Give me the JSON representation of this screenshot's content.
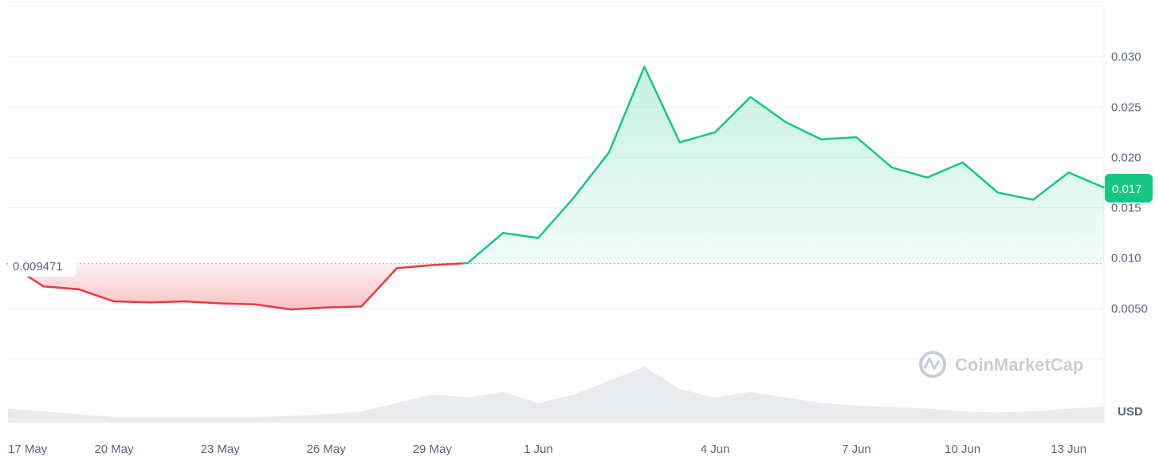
{
  "chart_data": {
    "type": "area",
    "x": [
      "17 May",
      "18 May",
      "19 May",
      "20 May",
      "21 May",
      "22 May",
      "23 May",
      "24 May",
      "25 May",
      "26 May",
      "27 May",
      "28 May",
      "29 May",
      "30 May",
      "31 May",
      "1 Jun",
      "2 Jun",
      "2 Jun 12h",
      "3 Jun",
      "3 Jun 12h",
      "4 Jun",
      "4 Jun 12h",
      "5 Jun",
      "6 Jun",
      "7 Jun",
      "8 Jun",
      "9 Jun",
      "10 Jun",
      "11 Jun",
      "12 Jun",
      "13 Jun",
      "14 Jun"
    ],
    "series": [
      {
        "values": [
          0.009471,
          0.0072,
          0.0069,
          0.0057,
          0.0056,
          0.0057,
          0.0055,
          0.0054,
          0.0049,
          0.0051,
          0.0052,
          0.009,
          0.0093,
          0.0095,
          0.0125,
          0.012,
          0.016,
          0.0205,
          0.029,
          0.0215,
          0.0225,
          0.026,
          0.0235,
          0.0218,
          0.022,
          0.019,
          0.018,
          0.0195,
          0.0165,
          0.0158,
          0.0185,
          0.017
        ]
      }
    ],
    "volume": [
      0.25,
      0.2,
      0.15,
      0.1,
      0.1,
      0.1,
      0.1,
      0.1,
      0.12,
      0.15,
      0.2,
      0.35,
      0.5,
      0.45,
      0.55,
      0.35,
      0.5,
      0.75,
      1.0,
      0.6,
      0.45,
      0.55,
      0.45,
      0.35,
      0.3,
      0.28,
      0.25,
      0.2,
      0.18,
      0.2,
      0.25,
      0.28
    ],
    "baseline": 0.009471,
    "baseline_label": "0.009471",
    "current_label": "0.017",
    "y_ticks": [
      0.03,
      0.025,
      0.02,
      0.015,
      0.01,
      0.005
    ],
    "y_tick_labels": [
      "0.030",
      "0.025",
      "0.020",
      "0.015",
      "0.010",
      "0.0050"
    ],
    "ylim": [
      0.0,
      0.035
    ],
    "x_tick_labels": [
      "17 May",
      "20 May",
      "23 May",
      "26 May",
      "29 May",
      "1 Jun",
      "4 Jun",
      "7 Jun",
      "10 Jun",
      "13 Jun"
    ],
    "x_tick_index": [
      0,
      3,
      6,
      9,
      12,
      15,
      20,
      24,
      27,
      30
    ],
    "currency": "USD",
    "up_color": "#16c784",
    "down_color": "#ea3943",
    "grid": true
  },
  "watermark": "CoinMarketCap"
}
